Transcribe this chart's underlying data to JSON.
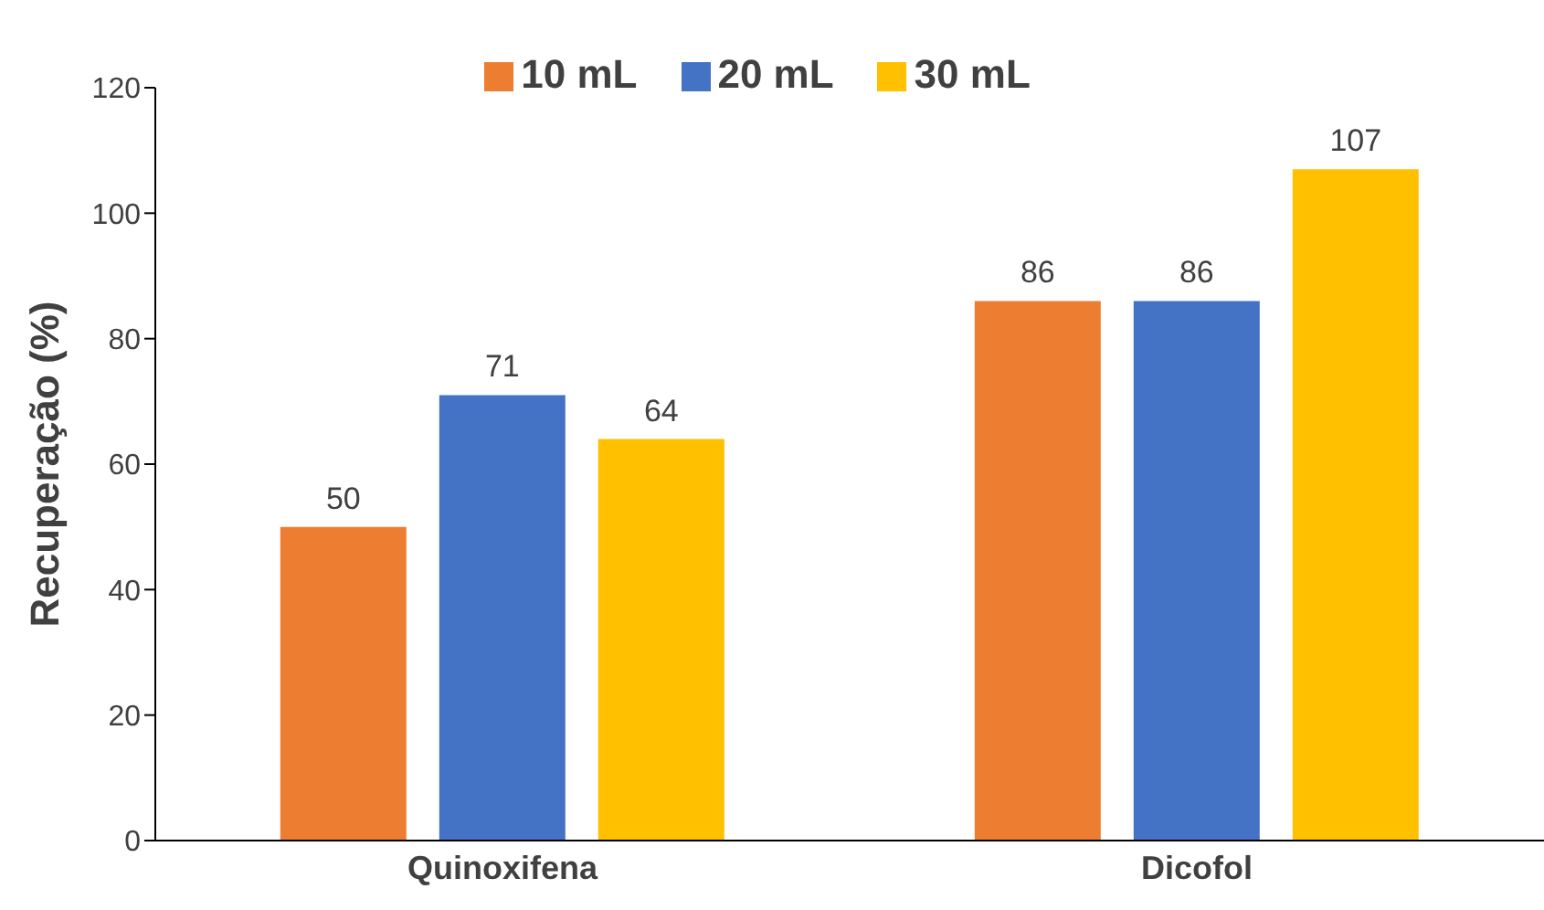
{
  "chart_data": {
    "type": "bar",
    "ylabel": "Recuperação (%)",
    "categories": [
      "Quinoxifena",
      "Dicofol"
    ],
    "series": [
      {
        "name": "10 mL",
        "color": "#ed7d31",
        "values": [
          50,
          86
        ]
      },
      {
        "name": "20 mL",
        "color": "#4472c4",
        "values": [
          71,
          86
        ]
      },
      {
        "name": "30 mL",
        "color": "#ffc000",
        "values": [
          64,
          107
        ]
      }
    ],
    "ylim": [
      0,
      120
    ],
    "yticks": [
      0,
      20,
      40,
      60,
      80,
      100,
      120
    ],
    "grid": false,
    "legend": "top",
    "data_labels": true
  }
}
